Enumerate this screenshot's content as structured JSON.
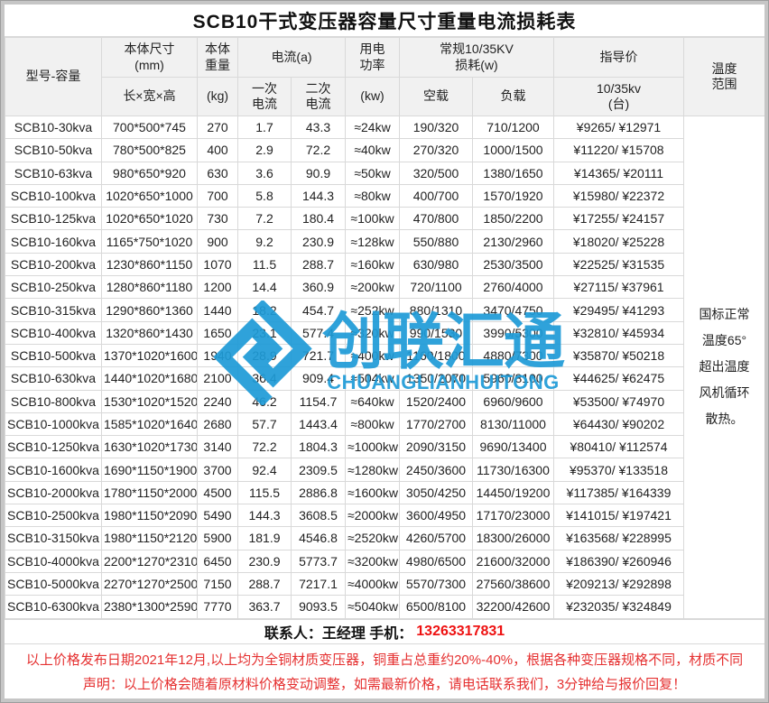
{
  "title": "SCB10干式变压器容量尺寸重量电流损耗表",
  "table": {
    "header": {
      "model": "型号-容量",
      "size_top": "本体尺寸\n(mm)",
      "size_sub": "长×宽×高",
      "weight_top": "本体\n重量",
      "weight_sub": "(kg)",
      "current_group": "电流(a)",
      "current_primary": "一次\n电流",
      "current_secondary": "二次\n电流",
      "power_top": "用电\n功率",
      "power_sub": "(kw)",
      "loss_group": "常规10/35KV\n损耗(w)",
      "loss_noload": "空载",
      "loss_load": "负载",
      "price_top": "指导价",
      "price_sub": "10/35kv\n(台)",
      "temp": "温度\n范围"
    },
    "cell_names": [
      "model",
      "size",
      "weight",
      "primary-current",
      "secondary-current",
      "power",
      "noload-loss",
      "load-loss",
      "price"
    ],
    "rows": [
      [
        "SCB10-30kva",
        "700*500*745",
        "270",
        "1.7",
        "43.3",
        "≈24kw",
        "190/320",
        "710/1200",
        "¥9265/ ¥12971"
      ],
      [
        "SCB10-50kva",
        "780*500*825",
        "400",
        "2.9",
        "72.2",
        "≈40kw",
        "270/320",
        "1000/1500",
        "¥11220/ ¥15708"
      ],
      [
        "SCB10-63kva",
        "980*650*920",
        "630",
        "3.6",
        "90.9",
        "≈50kw",
        "320/500",
        "1380/1650",
        "¥14365/ ¥20111"
      ],
      [
        "SCB10-100kva",
        "1020*650*1000",
        "700",
        "5.8",
        "144.3",
        "≈80kw",
        "400/700",
        "1570/1920",
        "¥15980/ ¥22372"
      ],
      [
        "SCB10-125kva",
        "1020*650*1020",
        "730",
        "7.2",
        "180.4",
        "≈100kw",
        "470/800",
        "1850/2200",
        "¥17255/ ¥24157"
      ],
      [
        "SCB10-160kva",
        "1165*750*1020",
        "900",
        "9.2",
        "230.9",
        "≈128kw",
        "550/880",
        "2130/2960",
        "¥18020/ ¥25228"
      ],
      [
        "SCB10-200kva",
        "1230*860*1150",
        "1070",
        "11.5",
        "288.7",
        "≈160kw",
        "630/980",
        "2530/3500",
        "¥22525/ ¥31535"
      ],
      [
        "SCB10-250kva",
        "1280*860*1180",
        "1200",
        "14.4",
        "360.9",
        "≈200kw",
        "720/1100",
        "2760/4000",
        "¥27115/ ¥37961"
      ],
      [
        "SCB10-315kva",
        "1290*860*1360",
        "1440",
        "18.2",
        "454.7",
        "≈252kw",
        "880/1310",
        "3470/4750",
        "¥29495/ ¥41293"
      ],
      [
        "SCB10-400kva",
        "1320*860*1430",
        "1650",
        "23.1",
        "577.4",
        "≈320kw",
        "990/1530",
        "3990/5300",
        "¥32810/ ¥45934"
      ],
      [
        "SCB10-500kva",
        "1370*1020*1600",
        "1940",
        "28.9",
        "721.7",
        "≈400kw",
        "1160/1800",
        "4880/7300",
        "¥35870/ ¥50218"
      ],
      [
        "SCB10-630kva",
        "1440*1020*1680",
        "2100",
        "36.4",
        "909.4",
        "≈504kw",
        "1350/2070",
        "5960/8100",
        "¥44625/ ¥62475"
      ],
      [
        "SCB10-800kva",
        "1530*1020*1520",
        "2240",
        "46.2",
        "1154.7",
        "≈640kw",
        "1520/2400",
        "6960/9600",
        "¥53500/ ¥74970"
      ],
      [
        "SCB10-1000kva",
        "1585*1020*1640",
        "2680",
        "57.7",
        "1443.4",
        "≈800kw",
        "1770/2700",
        "8130/11000",
        "¥64430/ ¥90202"
      ],
      [
        "SCB10-1250kva",
        "1630*1020*1730",
        "3140",
        "72.2",
        "1804.3",
        "≈1000kw",
        "2090/3150",
        "9690/13400",
        "¥80410/ ¥112574"
      ],
      [
        "SCB10-1600kva",
        "1690*1150*1900",
        "3700",
        "92.4",
        "2309.5",
        "≈1280kw",
        "2450/3600",
        "11730/16300",
        "¥95370/ ¥133518"
      ],
      [
        "SCB10-2000kva",
        "1780*1150*2000",
        "4500",
        "115.5",
        "2886.8",
        "≈1600kw",
        "3050/4250",
        "14450/19200",
        "¥117385/ ¥164339"
      ],
      [
        "SCB10-2500kva",
        "1980*1150*2090",
        "5490",
        "144.3",
        "3608.5",
        "≈2000kw",
        "3600/4950",
        "17170/23000",
        "¥141015/ ¥197421"
      ],
      [
        "SCB10-3150kva",
        "1980*1150*2120",
        "5900",
        "181.9",
        "4546.8",
        "≈2520kw",
        "4260/5700",
        "18300/26000",
        "¥163568/ ¥228995"
      ],
      [
        "SCB10-4000kva",
        "2200*1270*2310",
        "6450",
        "230.9",
        "5773.7",
        "≈3200kw",
        "4980/6500",
        "21600/32000",
        "¥186390/ ¥260946"
      ],
      [
        "SCB10-5000kva",
        "2270*1270*2500",
        "7150",
        "288.7",
        "7217.1",
        "≈4000kw",
        "5570/7300",
        "27560/38600",
        "¥209213/ ¥292898"
      ],
      [
        "SCB10-6300kva",
        "2380*1300*2590",
        "7770",
        "363.7",
        "9093.5",
        "≈5040kw",
        "6500/8100",
        "32200/42600",
        "¥232035/ ¥324849"
      ]
    ]
  },
  "temp_note_lines": [
    "国标正常",
    "温度65°",
    "超出温度",
    "风机循环",
    "散热。"
  ],
  "contact": {
    "label": "联系人：王经理 手机：",
    "phone": "13263317831"
  },
  "notes": [
    "以上价格发布日期2021年12月,以上均为全铜材质变压器，铜重占总重约20%-40%，根据各种变压器规格不同，材质不同",
    "声明：以上价格会随着原材料价格变动调整，如需最新价格，请电话联系我们，3分钟给与报价回复！"
  ],
  "watermark": {
    "zh": "创联汇通",
    "en": "CHUANGLIANHUITONG",
    "color": "#1e9bd7"
  },
  "colors": {
    "model_red": "#de3c3c",
    "phone_red": "#ee1111",
    "note_red": "#e53030",
    "header_bg": "#f1f1f1",
    "grid_line": "#d9d9d9",
    "frame_gray": "#c6c6c6",
    "watermark_blue": "#1e9bd7"
  }
}
